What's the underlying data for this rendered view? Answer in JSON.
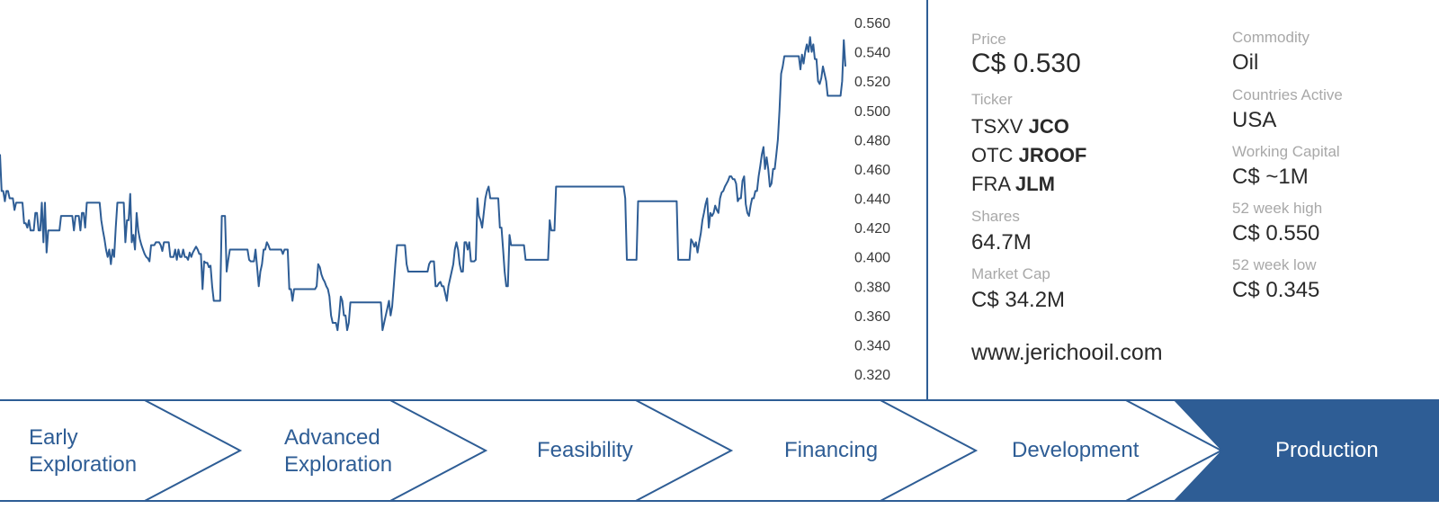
{
  "chart_data": {
    "type": "line",
    "ylim": [
      0.31,
      0.565
    ],
    "yticks": [
      "0.560",
      "0.540",
      "0.520",
      "0.500",
      "0.480",
      "0.460",
      "0.440",
      "0.420",
      "0.400",
      "0.380",
      "0.360",
      "0.340",
      "0.320"
    ],
    "series": [
      {
        "color": "#2e5d95",
        "values": [
          0.47,
          0.445,
          0.445,
          0.438,
          0.445,
          0.445,
          0.44,
          0.44,
          0.44,
          0.432,
          0.437,
          0.437,
          0.437,
          0.437,
          0.437,
          0.423,
          0.423,
          0.42,
          0.425,
          0.418,
          0.418,
          0.418,
          0.43,
          0.43,
          0.418,
          0.418,
          0.437,
          0.41,
          0.437,
          0.403,
          0.418,
          0.418,
          0.418,
          0.418,
          0.418,
          0.418,
          0.418,
          0.418,
          0.428,
          0.428,
          0.428,
          0.428,
          0.428,
          0.428,
          0.428,
          0.428,
          0.418,
          0.428,
          0.428,
          0.428,
          0.418,
          0.43,
          0.43,
          0.42,
          0.437,
          0.437,
          0.437,
          0.437,
          0.437,
          0.437,
          0.437,
          0.437,
          0.437,
          0.425,
          0.418,
          0.412,
          0.405,
          0.4,
          0.405,
          0.395,
          0.405,
          0.4,
          0.42,
          0.437,
          0.437,
          0.437,
          0.437,
          0.437,
          0.41,
          0.425,
          0.425,
          0.443,
          0.41,
          0.415,
          0.405,
          0.43,
          0.418,
          0.412,
          0.408,
          0.405,
          0.402,
          0.4,
          0.399,
          0.397,
          0.408,
          0.408,
          0.408,
          0.41,
          0.41,
          0.41,
          0.408,
          0.404,
          0.41,
          0.41,
          0.41,
          0.41,
          0.4,
          0.4,
          0.4,
          0.405,
          0.398,
          0.405,
          0.4,
          0.4,
          0.405,
          0.4,
          0.4,
          0.398,
          0.403,
          0.4,
          0.403,
          0.405,
          0.407,
          0.405,
          0.402,
          0.402,
          0.378,
          0.397,
          0.396,
          0.396,
          0.393,
          0.394,
          0.38,
          0.37,
          0.37,
          0.37,
          0.37,
          0.37,
          0.428,
          0.428,
          0.428,
          0.39,
          0.398,
          0.405,
          0.405,
          0.405,
          0.405,
          0.405,
          0.405,
          0.405,
          0.405,
          0.405,
          0.405,
          0.405,
          0.405,
          0.398,
          0.397,
          0.397,
          0.397,
          0.405,
          0.393,
          0.38,
          0.39,
          0.395,
          0.405,
          0.405,
          0.41,
          0.408,
          0.405,
          0.405,
          0.405,
          0.405,
          0.405,
          0.405,
          0.405,
          0.405,
          0.402,
          0.405,
          0.405,
          0.405,
          0.378,
          0.378,
          0.37,
          0.378,
          0.378,
          0.378,
          0.378,
          0.378,
          0.378,
          0.378,
          0.378,
          0.378,
          0.378,
          0.378,
          0.378,
          0.378,
          0.378,
          0.38,
          0.395,
          0.393,
          0.388,
          0.385,
          0.383,
          0.38,
          0.378,
          0.373,
          0.36,
          0.355,
          0.355,
          0.355,
          0.35,
          0.36,
          0.373,
          0.37,
          0.36,
          0.36,
          0.35,
          0.355,
          0.369,
          0.369,
          0.369,
          0.369,
          0.369,
          0.369,
          0.369,
          0.369,
          0.369,
          0.369,
          0.369,
          0.369,
          0.369,
          0.369,
          0.369,
          0.369,
          0.369,
          0.369,
          0.369,
          0.369,
          0.35,
          0.355,
          0.36,
          0.365,
          0.37,
          0.36,
          0.366,
          0.38,
          0.395,
          0.408,
          0.408,
          0.408,
          0.408,
          0.408,
          0.408,
          0.395,
          0.39,
          0.39,
          0.39,
          0.39,
          0.39,
          0.39,
          0.39,
          0.39,
          0.39,
          0.39,
          0.39,
          0.39,
          0.39,
          0.395,
          0.397,
          0.397,
          0.397,
          0.38,
          0.38,
          0.382,
          0.383,
          0.38,
          0.38,
          0.375,
          0.37,
          0.38,
          0.385,
          0.39,
          0.395,
          0.405,
          0.41,
          0.405,
          0.395,
          0.39,
          0.39,
          0.41,
          0.41,
          0.405,
          0.41,
          0.397,
          0.397,
          0.397,
          0.398,
          0.44,
          0.428,
          0.425,
          0.42,
          0.43,
          0.44,
          0.445,
          0.448,
          0.44,
          0.44,
          0.44,
          0.44,
          0.44,
          0.44,
          0.42,
          0.42,
          0.405,
          0.39,
          0.38,
          0.38,
          0.415,
          0.408,
          0.408,
          0.408,
          0.408,
          0.408,
          0.408,
          0.408,
          0.408,
          0.408,
          0.398,
          0.398,
          0.398,
          0.398,
          0.398,
          0.398,
          0.398,
          0.398,
          0.398,
          0.398,
          0.398,
          0.398,
          0.398,
          0.398,
          0.398,
          0.425,
          0.418,
          0.418,
          0.418,
          0.448,
          0.448,
          0.448,
          0.448,
          0.448,
          0.448,
          0.448,
          0.448,
          0.448,
          0.448,
          0.448,
          0.448,
          0.448,
          0.448,
          0.448,
          0.448,
          0.448,
          0.448,
          0.448,
          0.448,
          0.448,
          0.448,
          0.448,
          0.448,
          0.448,
          0.448,
          0.448,
          0.448,
          0.448,
          0.448,
          0.448,
          0.448,
          0.448,
          0.448,
          0.448,
          0.448,
          0.448,
          0.448,
          0.448,
          0.448,
          0.448,
          0.448,
          0.448,
          0.44,
          0.398,
          0.398,
          0.398,
          0.398,
          0.398,
          0.398,
          0.398,
          0.438,
          0.438,
          0.438,
          0.438,
          0.438,
          0.438,
          0.438,
          0.438,
          0.438,
          0.438,
          0.438,
          0.438,
          0.438,
          0.438,
          0.438,
          0.438,
          0.438,
          0.438,
          0.438,
          0.438,
          0.438,
          0.438,
          0.438,
          0.438,
          0.438,
          0.398,
          0.398,
          0.398,
          0.398,
          0.398,
          0.398,
          0.398,
          0.398,
          0.412,
          0.41,
          0.407,
          0.41,
          0.403,
          0.41,
          0.416,
          0.425,
          0.43,
          0.436,
          0.44,
          0.42,
          0.43,
          0.428,
          0.43,
          0.435,
          0.432,
          0.43,
          0.44,
          0.444,
          0.445,
          0.448,
          0.45,
          0.452,
          0.455,
          0.455,
          0.453,
          0.453,
          0.45,
          0.438,
          0.44,
          0.44,
          0.452,
          0.455,
          0.436,
          0.43,
          0.428,
          0.435,
          0.44,
          0.44,
          0.445,
          0.445,
          0.455,
          0.462,
          0.47,
          0.475,
          0.46,
          0.468,
          0.46,
          0.448,
          0.45,
          0.46,
          0.46,
          0.47,
          0.48,
          0.5,
          0.525,
          0.53,
          0.537,
          0.537,
          0.537,
          0.537,
          0.537,
          0.537,
          0.537,
          0.537,
          0.537,
          0.537,
          0.528,
          0.538,
          0.532,
          0.54,
          0.545,
          0.54,
          0.55,
          0.54,
          0.545,
          0.535,
          0.535,
          0.52,
          0.518,
          0.522,
          0.53,
          0.525,
          0.52,
          0.51,
          0.51,
          0.51,
          0.51,
          0.51,
          0.51,
          0.51,
          0.51,
          0.51,
          0.52,
          0.548,
          0.53
        ]
      }
    ]
  },
  "info": {
    "price": {
      "label": "Price",
      "value": "C$ 0.530"
    },
    "ticker": {
      "label": "Ticker",
      "lines": [
        {
          "exchange": "TSXV",
          "symbol": "JCO"
        },
        {
          "exchange": "OTC",
          "symbol": "JROOF"
        },
        {
          "exchange": "FRA",
          "symbol": "JLM"
        }
      ]
    },
    "shares": {
      "label": "Shares",
      "value": "64.7M"
    },
    "market_cap": {
      "label": "Market Cap",
      "value": "C$ 34.2M"
    },
    "website": "www.jerichooil.com",
    "commodity": {
      "label": "Commodity",
      "value": "Oil"
    },
    "countries": {
      "label": "Countries Active",
      "value": "USA"
    },
    "working_capital": {
      "label": "Working Capital",
      "value": "C$ ~1M"
    },
    "high52": {
      "label": "52 week high",
      "value": "C$ 0.550"
    },
    "low52": {
      "label": "52 week low",
      "value": "C$ 0.345"
    }
  },
  "stages": [
    {
      "line1": "Early",
      "line2": "Exploration",
      "active": false
    },
    {
      "line1": "Advanced",
      "line2": "Exploration",
      "active": false
    },
    {
      "line1": "Feasibility",
      "line2": "",
      "active": false
    },
    {
      "line1": "Financing",
      "line2": "",
      "active": false
    },
    {
      "line1": "Development",
      "line2": "",
      "active": false
    },
    {
      "line1": "Production",
      "line2": "",
      "active": true
    }
  ],
  "colors": {
    "accent": "#2e5d95",
    "label": "#a8a8a8",
    "text": "#2a2a2a"
  }
}
